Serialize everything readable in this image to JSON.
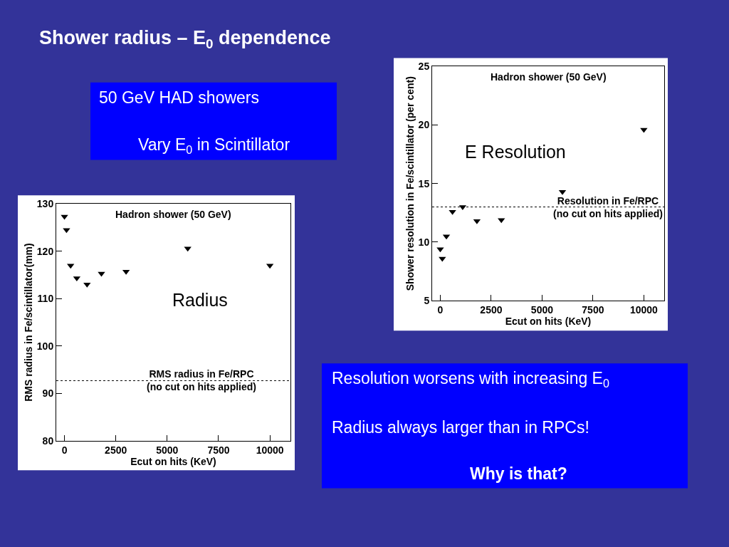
{
  "chart_data": [
    {
      "type": "scatter",
      "title": "Hadron shower (50 GeV)",
      "xlabel": "Ecut on hits (KeV)",
      "ylabel": "RMS radius in Fe/scintillator(mm)",
      "x": [
        0,
        100,
        300,
        600,
        1100,
        1800,
        3000,
        6000,
        10000
      ],
      "values": [
        127.3,
        124.5,
        117.0,
        114.3,
        113.0,
        115.3,
        115.7,
        120.6,
        117.0
      ],
      "color": "#000000",
      "marker": "triangle",
      "xlim": [
        -400,
        11000
      ],
      "xticks": [
        0,
        2500,
        5000,
        7500,
        10000
      ],
      "ylim": [
        80,
        130
      ],
      "yticks": [
        80,
        90,
        100,
        110,
        120,
        130
      ],
      "ref_lines": [
        {
          "axis": "y",
          "value": 92.7,
          "label": "RMS radius in Fe/RPC\n(no cut on hits applied)",
          "line_style": "dotted"
        }
      ],
      "annotations": [
        "Radius"
      ]
    },
    {
      "type": "scatter",
      "title": "Hadron shower (50 GeV)",
      "xlabel": "Ecut on hits (KeV)",
      "ylabel": "Shower resolution in Fe/scintillator (per cent)",
      "x": [
        0,
        100,
        300,
        600,
        1100,
        1800,
        3000,
        6000,
        10000
      ],
      "values": [
        9.4,
        8.6,
        10.5,
        12.6,
        13.0,
        11.8,
        11.9,
        14.3,
        19.6
      ],
      "color": "#000000",
      "marker": "triangle",
      "xlim": [
        -400,
        11000
      ],
      "xticks": [
        0,
        2500,
        5000,
        7500,
        10000
      ],
      "ylim": [
        5,
        25
      ],
      "yticks": [
        5,
        10,
        15,
        20,
        25
      ],
      "ref_lines": [
        {
          "axis": "y",
          "value": 13.0,
          "label": "Resolution in Fe/RPC\n(no cut on hits applied)",
          "line_style": "dotted"
        }
      ],
      "annotations": [
        "E Resolution"
      ]
    },
    {
      "type": "other",
      "title": "Shower radius – E$_{0}$ dependence",
      "annotations": [
        "50 GeV HAD showers",
        "Vary E$_{0}$ in Scintillator",
        "Resolution worsens with increasing E$_{0}$",
        "Radius always larger than in RPCs!",
        "Why is that?"
      ]
    }
  ]
}
